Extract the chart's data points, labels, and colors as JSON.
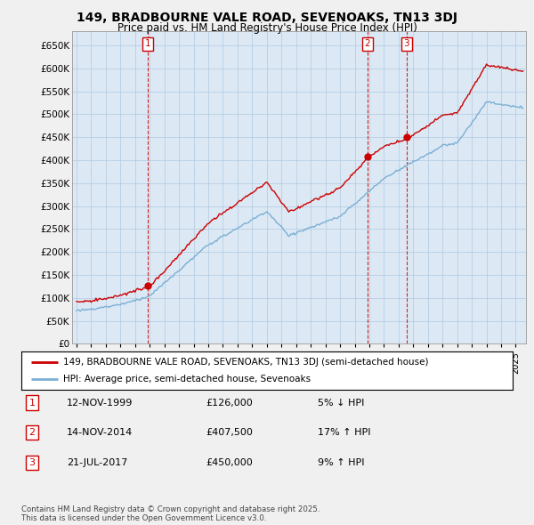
{
  "title": "149, BRADBOURNE VALE ROAD, SEVENOAKS, TN13 3DJ",
  "subtitle": "Price paid vs. HM Land Registry's House Price Index (HPI)",
  "ylim": [
    0,
    680000
  ],
  "yticks": [
    0,
    50000,
    100000,
    150000,
    200000,
    250000,
    300000,
    350000,
    400000,
    450000,
    500000,
    550000,
    600000,
    650000
  ],
  "ytick_labels": [
    "£0",
    "£50K",
    "£100K",
    "£150K",
    "£200K",
    "£250K",
    "£300K",
    "£350K",
    "£400K",
    "£450K",
    "£500K",
    "£550K",
    "£600K",
    "£650K"
  ],
  "xlim_start": 1994.7,
  "xlim_end": 2025.7,
  "hpi_color": "#7bafd4",
  "price_color": "#cc0000",
  "transactions": [
    {
      "num": "1",
      "year": 1999.87,
      "price": 126000
    },
    {
      "num": "2",
      "year": 2014.87,
      "price": 407500
    },
    {
      "num": "3",
      "year": 2017.55,
      "price": 450000
    }
  ],
  "legend_line1": "149, BRADBOURNE VALE ROAD, SEVENOAKS, TN13 3DJ (semi-detached house)",
  "legend_line2": "HPI: Average price, semi-detached house, Sevenoaks",
  "table_rows": [
    {
      "num": "1",
      "date": "12-NOV-1999",
      "price": "£126,000",
      "change": "5% ↓ HPI"
    },
    {
      "num": "2",
      "date": "14-NOV-2014",
      "price": "£407,500",
      "change": "17% ↑ HPI"
    },
    {
      "num": "3",
      "date": "21-JUL-2017",
      "price": "£450,000",
      "change": "9% ↑ HPI"
    }
  ],
  "footnote": "Contains HM Land Registry data © Crown copyright and database right 2025.\nThis data is licensed under the Open Government Licence v3.0.",
  "background_color": "#f0f0f0",
  "plot_bg_color": "#dce9f5"
}
